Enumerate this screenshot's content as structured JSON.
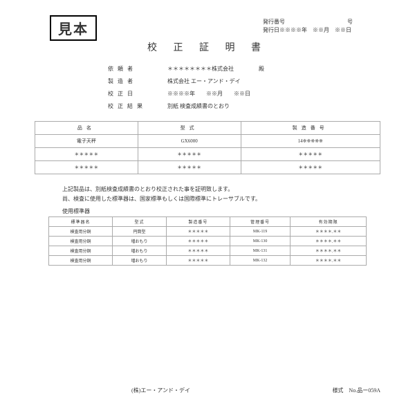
{
  "stamp": "見本",
  "issue": {
    "number_label": "発行番号",
    "number_suffix": "号",
    "date_label": "発行日",
    "date_value": "※※※※年　※※月　※※日"
  },
  "title": "校 正 証 明 書",
  "info": {
    "client_label": "依 頼 者",
    "client_value": "＊＊＊＊＊＊＊＊株式会社",
    "client_suffix": "殿",
    "maker_label": "製 造 者",
    "maker_value": "株式会社 エー・アンド・デイ",
    "cal_date_label": "校 正 日",
    "cal_date_value": "※※※※年　　※※月　　※※日",
    "result_label": "校 正 結 果",
    "result_value": "別紙 検査成績書のとおり"
  },
  "product_table": {
    "headers": [
      "品名",
      "型式",
      "製造番号"
    ],
    "rows": [
      [
        "電子天秤",
        "GX6000",
        "14※※※※※"
      ],
      [
        "＊＊＊＊＊",
        "＊＊＊＊＊",
        "＊＊＊＊＊"
      ],
      [
        "＊＊＊＊＊",
        "＊＊＊＊＊",
        "＊＊＊＊＊"
      ]
    ]
  },
  "notes": [
    "上記製品は、別紙検査成績書のとおり校正された事を証明致します。",
    "尚、検査に使用した標準器は、国家標準もしくは国際標準にトレーサブルです。"
  ],
  "std_label": "使用標準器",
  "std_table": {
    "headers": [
      "標準器名",
      "型式",
      "製造番号",
      "管理番号",
      "有効期限"
    ],
    "rows": [
      [
        "検査用分銅",
        "円筒型",
        "＊＊＊＊＊",
        "MK-119",
        "＊＊＊＊.＊＊"
      ],
      [
        "検査用分銅",
        "増おもり",
        "＊＊＊＊＊",
        "MK-130",
        "＊＊＊＊.＊＊"
      ],
      [
        "検査用分銅",
        "増おもり",
        "＊＊＊＊＊",
        "MK-131",
        "＊＊＊＊.＊＊"
      ],
      [
        "検査用分銅",
        "増おもり",
        "＊＊＊＊＊",
        "MK-132",
        "＊＊＊＊.＊＊"
      ]
    ]
  },
  "footer": {
    "company": "(株)エー・アンド・デイ",
    "form": "様式　No.品ー059A"
  }
}
